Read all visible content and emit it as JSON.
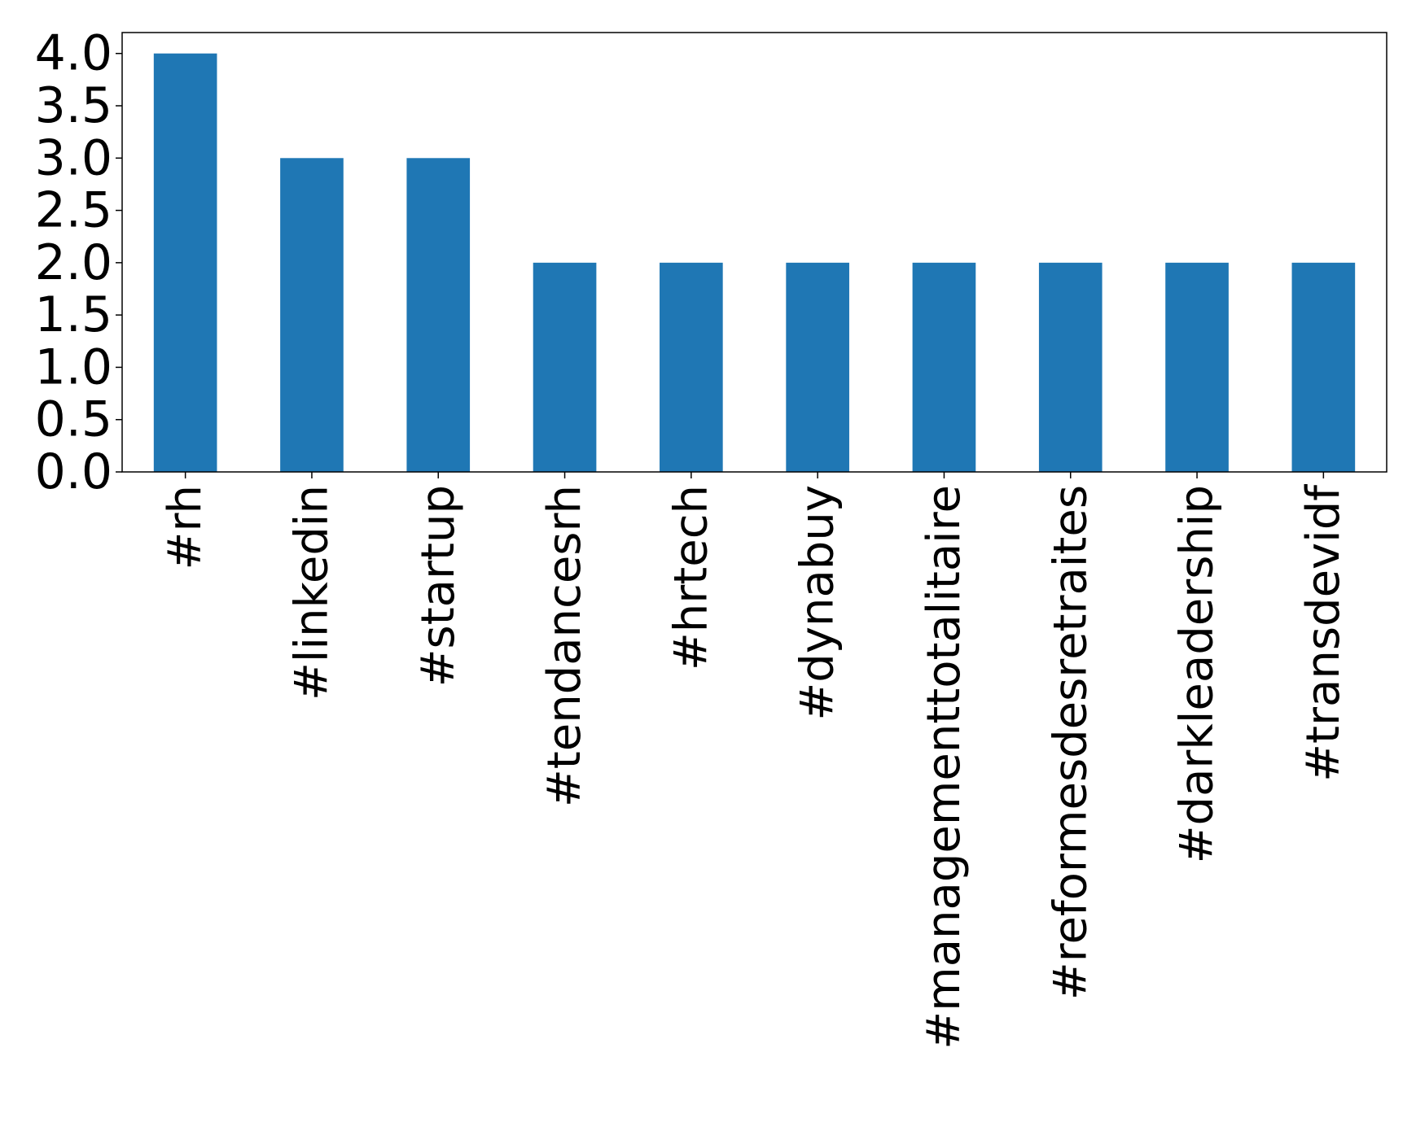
{
  "chart_data": {
    "type": "bar",
    "title": "",
    "xlabel": "",
    "ylabel": "",
    "categories": [
      "#rh",
      "#linkedin",
      "#startup",
      "#tendancesrh",
      "#hrtech",
      "#dynabuy",
      "#managementtotalitaire",
      "#reformesdesretraites",
      "#darkleadership",
      "#transdevidf"
    ],
    "values": [
      4,
      3,
      3,
      2,
      2,
      2,
      2,
      2,
      2,
      2
    ],
    "ylim": [
      0,
      4.2
    ],
    "yticks": [
      "0.0",
      "0.5",
      "1.0",
      "1.5",
      "2.0",
      "2.5",
      "3.0",
      "3.5",
      "4.0"
    ],
    "bar_color": "#1f77b4",
    "grid": false,
    "legend": "none"
  }
}
